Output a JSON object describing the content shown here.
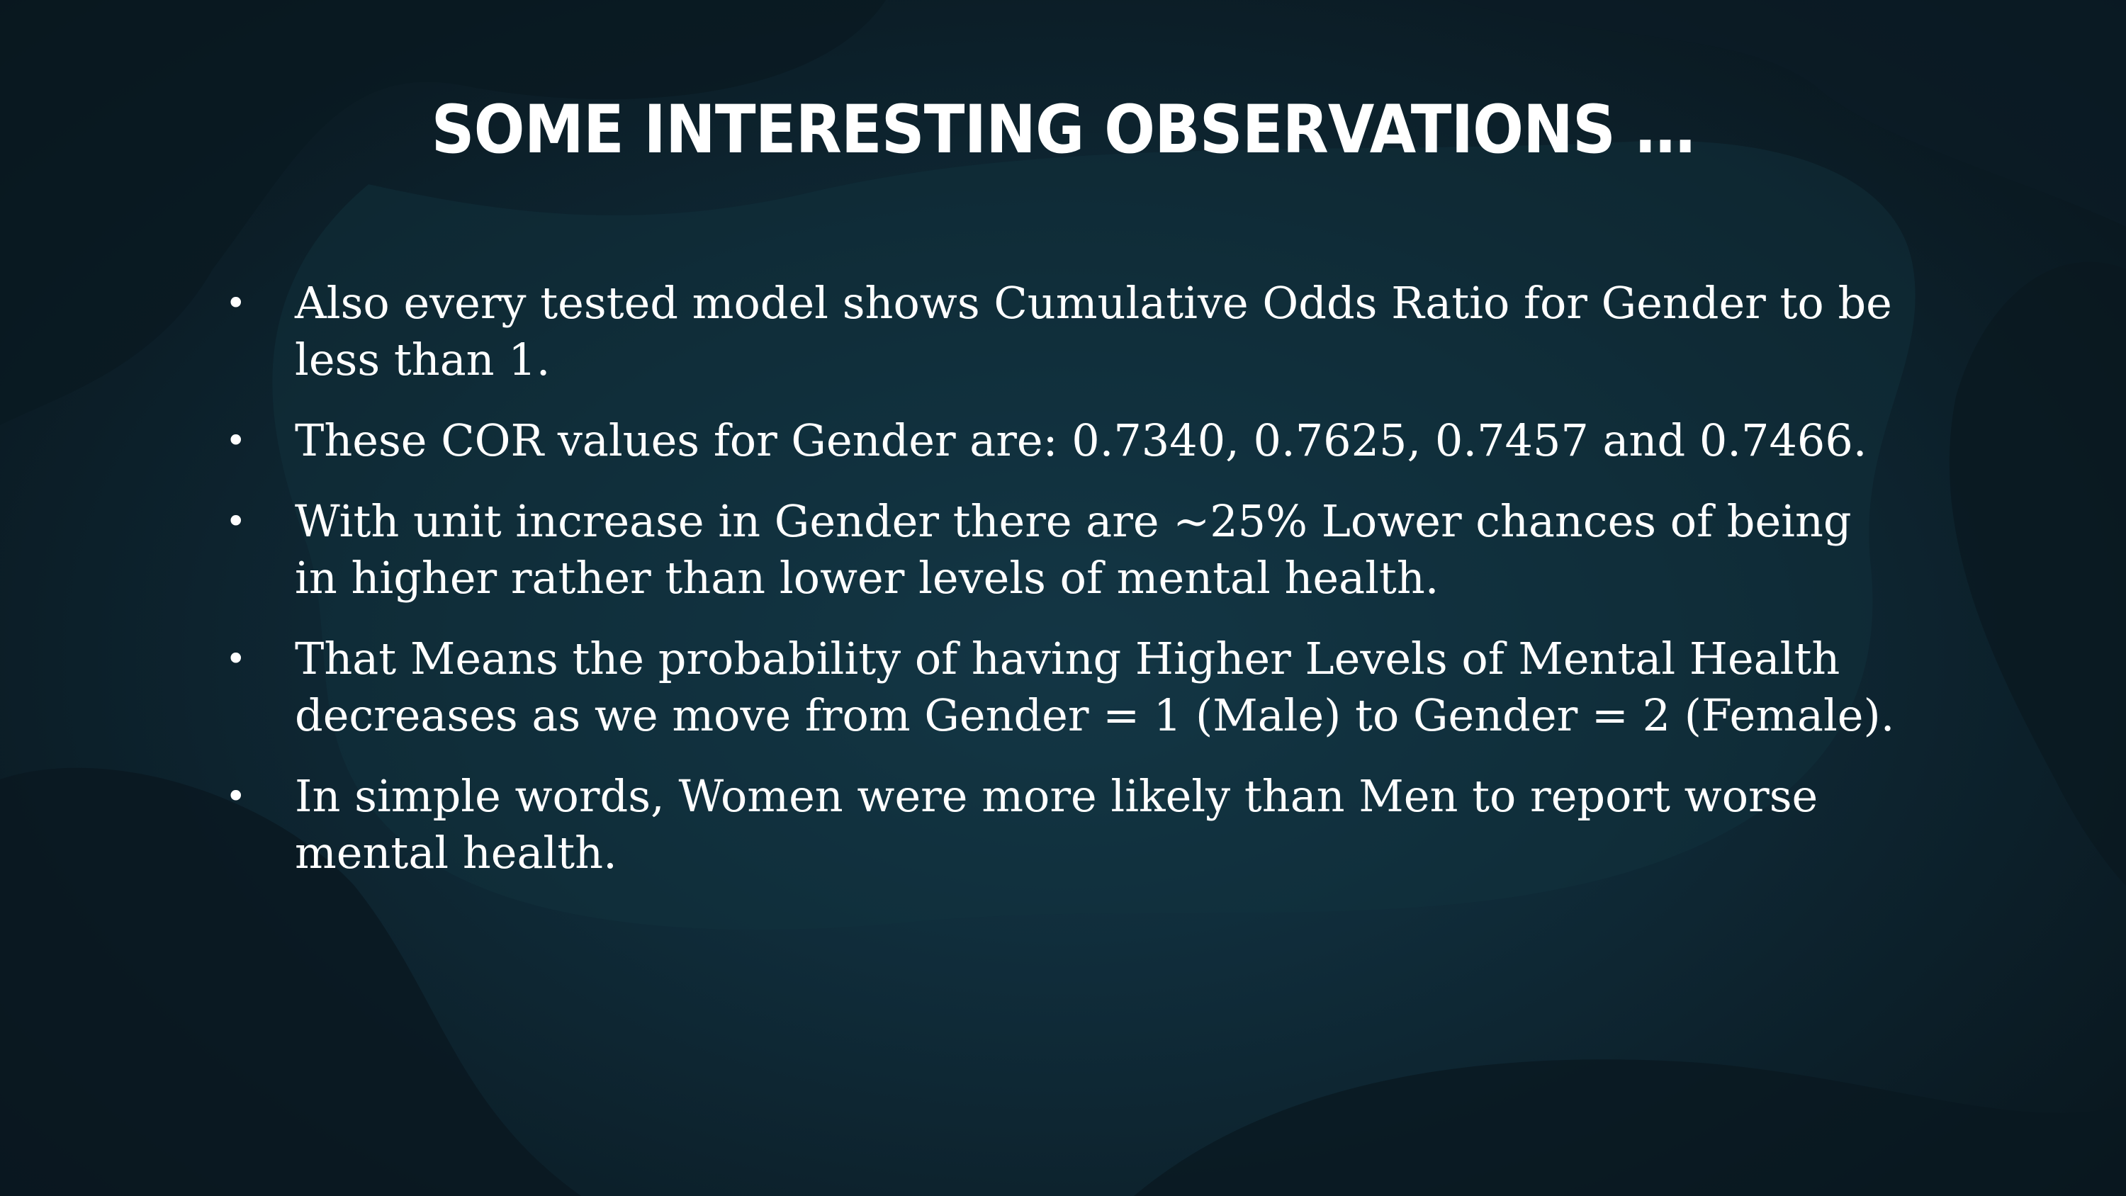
{
  "slide": {
    "title": "SOME INTERESTING OBSERVATIONS …",
    "bullet_icon": "bullet-dot",
    "bullets": [
      {
        "text": "Also every tested model shows Cumulative Odds Ratio for Gender to be less than 1."
      },
      {
        "text": "These COR values for Gender are:  0.7340, 0.7625, 0.7457 and 0.7466."
      },
      {
        "text": "With unit increase in Gender there are ~25% Lower chances of being in higher rather than lower levels of mental health."
      },
      {
        "text": "That Means the probability of having Higher Levels of Mental Health decreases as we move from Gender = 1 (Male) to Gender = 2 (Female)."
      },
      {
        "text": "In simple words, Women were more likely than Men to report worse mental health."
      }
    ]
  },
  "theme": {
    "background": "#0f2a37",
    "blob_dark": "#0a1820",
    "text": "#ffffff"
  }
}
